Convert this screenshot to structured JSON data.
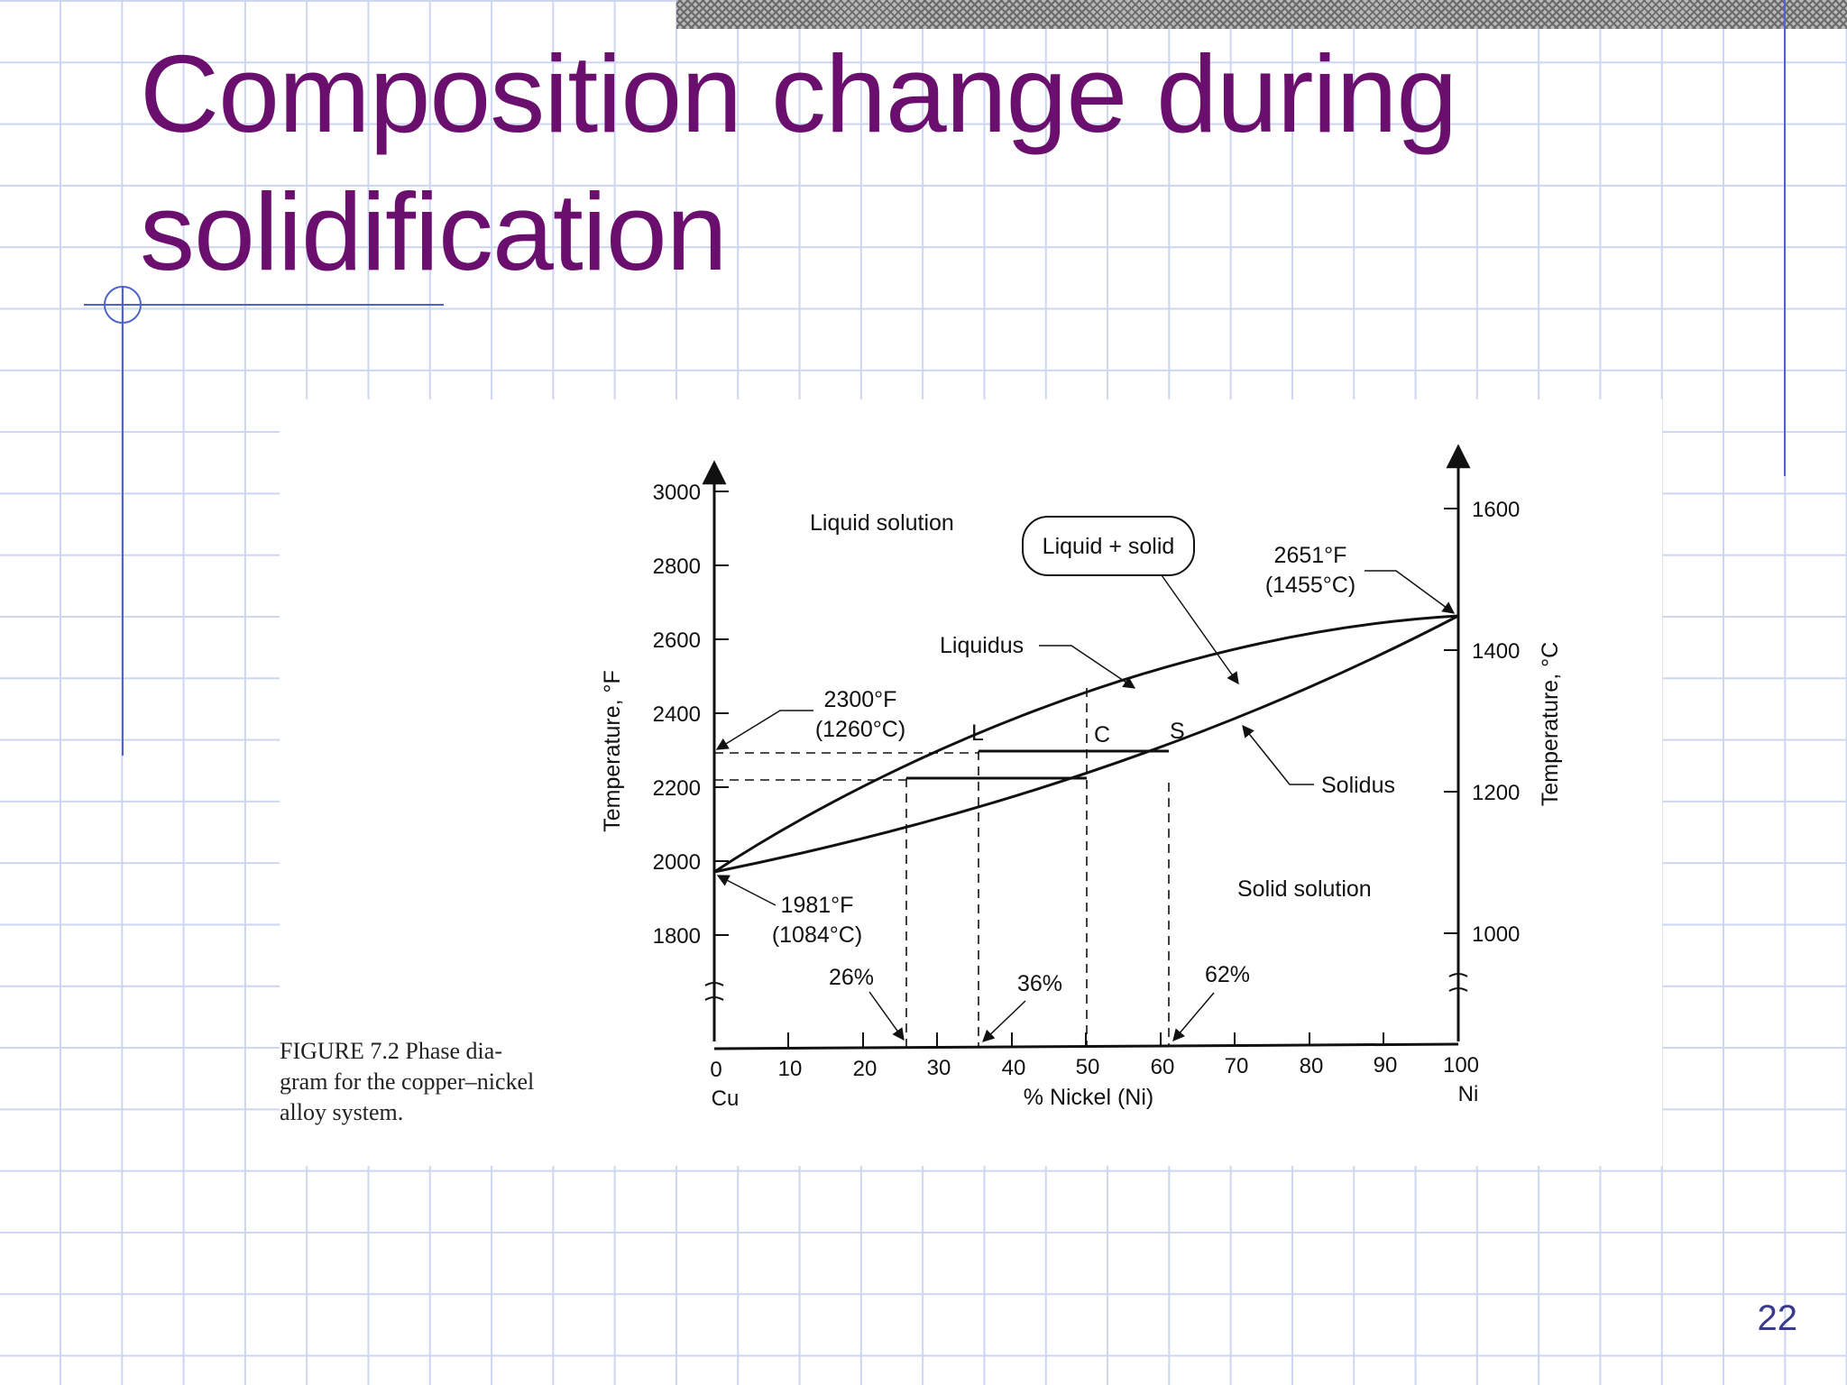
{
  "slide": {
    "title_lines": [
      "Composition change during",
      "solidification"
    ],
    "page_number": "22"
  },
  "figure": {
    "caption_lines": [
      "FIGURE 7.2    Phase dia-",
      "gram for the copper–nickel",
      "alloy system."
    ],
    "left_axis": {
      "label": "Temperature, °F",
      "ticks": [
        "3000",
        "2800",
        "2600",
        "2400",
        "2200",
        "2000",
        "1800"
      ]
    },
    "right_axis": {
      "label": "Temperature, °C",
      "ticks": [
        "1600",
        "1400",
        "1200",
        "1000"
      ]
    },
    "x_axis": {
      "label": "% Nickel (Ni)",
      "ticks": [
        "0",
        "10",
        "20",
        "30",
        "40",
        "50",
        "60",
        "70",
        "80",
        "90",
        "100"
      ],
      "left_end": "Cu",
      "right_end": "Ni"
    },
    "regions": {
      "liquid": "Liquid solution",
      "mixed": "Liquid + solid",
      "solid": "Solid solution"
    },
    "curves": {
      "liquidus": "Liquidus",
      "solidus": "Solidus"
    },
    "points": {
      "L": "L",
      "C": "C",
      "S": "S"
    },
    "annotations": {
      "ni_melt_f": "2651°F",
      "ni_melt_c": "(1455°C)",
      "alloy_temp_f": "2300°F",
      "alloy_temp_c": "(1260°C)",
      "cu_melt_f": "1981°F",
      "cu_melt_c": "(1084°C)"
    },
    "compositions": {
      "first": "26%",
      "second": "36%",
      "third": "62%"
    }
  }
}
